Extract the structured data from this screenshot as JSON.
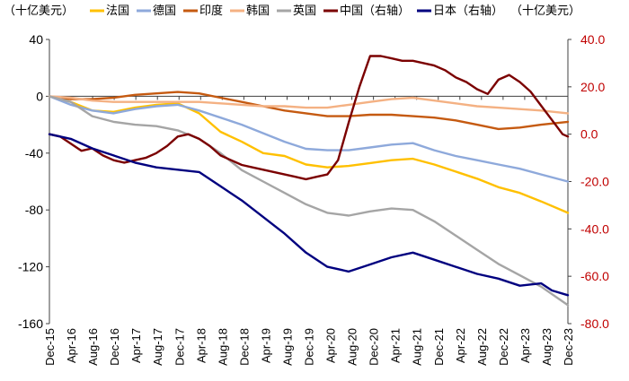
{
  "chart_data": {
    "type": "line",
    "title": "",
    "left_axis_unit": "（十亿美元）",
    "right_axis_unit": "（十亿美元）",
    "left_ylim": [
      -160,
      40
    ],
    "left_yticks": [
      40,
      0,
      -40,
      -80,
      -120,
      -160
    ],
    "right_ylim": [
      -80,
      40
    ],
    "right_yticks": [
      "40.0",
      "20.0",
      "0.0",
      "-20.0",
      "-40.0",
      "-60.0",
      "-80.0"
    ],
    "right_ytick_values": [
      40,
      20,
      0,
      -20,
      -40,
      -60,
      -80
    ],
    "x_range": [
      0,
      97
    ],
    "x_tick_labels": [
      "Dec-15",
      "Apr-16",
      "Aug-16",
      "Dec-16",
      "Apr-17",
      "Aug-17",
      "Dec-17",
      "Apr-18",
      "Aug-18",
      "Dec-18",
      "Apr-19",
      "Aug-19",
      "Dec-19",
      "Apr-20",
      "Aug-20",
      "Dec-20",
      "Apr-21",
      "Aug-21",
      "Dec-21",
      "Apr-22",
      "Aug-22",
      "Dec-22",
      "Apr-23",
      "Aug-23",
      "Dec-23"
    ],
    "colors": {
      "france": "#FFC000",
      "germany": "#8EA9DB",
      "india": "#C55A11",
      "korea": "#F4B183",
      "uk": "#A5A5A5",
      "china": "#7B0000",
      "japan": "#00007F",
      "right_axis": "#C00000"
    },
    "series": [
      {
        "key": "france",
        "name": "法国",
        "axis": "left",
        "points": [
          [
            0,
            0
          ],
          [
            4,
            -4
          ],
          [
            8,
            -10
          ],
          [
            12,
            -11
          ],
          [
            16,
            -8
          ],
          [
            20,
            -6
          ],
          [
            24,
            -5
          ],
          [
            28,
            -12
          ],
          [
            32,
            -25
          ],
          [
            36,
            -32
          ],
          [
            40,
            -40
          ],
          [
            44,
            -42
          ],
          [
            48,
            -48
          ],
          [
            52,
            -50
          ],
          [
            56,
            -49
          ],
          [
            60,
            -47
          ],
          [
            64,
            -45
          ],
          [
            68,
            -44
          ],
          [
            72,
            -48
          ],
          [
            76,
            -53
          ],
          [
            80,
            -58
          ],
          [
            84,
            -64
          ],
          [
            88,
            -68
          ],
          [
            92,
            -74
          ],
          [
            97,
            -82
          ]
        ]
      },
      {
        "key": "germany",
        "name": "德国",
        "axis": "left",
        "points": [
          [
            0,
            0
          ],
          [
            4,
            -6
          ],
          [
            8,
            -10
          ],
          [
            12,
            -12
          ],
          [
            16,
            -9
          ],
          [
            20,
            -7
          ],
          [
            24,
            -6
          ],
          [
            28,
            -10
          ],
          [
            32,
            -15
          ],
          [
            36,
            -20
          ],
          [
            40,
            -26
          ],
          [
            44,
            -32
          ],
          [
            48,
            -37
          ],
          [
            52,
            -38
          ],
          [
            56,
            -38
          ],
          [
            60,
            -36
          ],
          [
            64,
            -34
          ],
          [
            68,
            -33
          ],
          [
            72,
            -38
          ],
          [
            76,
            -42
          ],
          [
            80,
            -45
          ],
          [
            84,
            -48
          ],
          [
            88,
            -51
          ],
          [
            92,
            -55
          ],
          [
            97,
            -60
          ]
        ]
      },
      {
        "key": "india",
        "name": "印度",
        "axis": "left",
        "points": [
          [
            0,
            0
          ],
          [
            4,
            -2
          ],
          [
            8,
            -2
          ],
          [
            12,
            -1
          ],
          [
            16,
            1
          ],
          [
            20,
            2
          ],
          [
            24,
            3
          ],
          [
            28,
            2
          ],
          [
            32,
            -1
          ],
          [
            36,
            -4
          ],
          [
            40,
            -7
          ],
          [
            44,
            -10
          ],
          [
            48,
            -12
          ],
          [
            52,
            -14
          ],
          [
            56,
            -14
          ],
          [
            60,
            -13
          ],
          [
            64,
            -13
          ],
          [
            68,
            -14
          ],
          [
            72,
            -15
          ],
          [
            76,
            -17
          ],
          [
            80,
            -20
          ],
          [
            84,
            -23
          ],
          [
            88,
            -22
          ],
          [
            92,
            -20
          ],
          [
            97,
            -18
          ]
        ]
      },
      {
        "key": "korea",
        "name": "韩国",
        "axis": "left",
        "points": [
          [
            0,
            0
          ],
          [
            4,
            -1
          ],
          [
            8,
            -3
          ],
          [
            12,
            -4
          ],
          [
            16,
            -4
          ],
          [
            20,
            -4
          ],
          [
            24,
            -4
          ],
          [
            28,
            -4
          ],
          [
            32,
            -5
          ],
          [
            36,
            -6
          ],
          [
            40,
            -7
          ],
          [
            44,
            -7
          ],
          [
            48,
            -8
          ],
          [
            52,
            -8
          ],
          [
            56,
            -6
          ],
          [
            60,
            -4
          ],
          [
            64,
            -2
          ],
          [
            68,
            -1
          ],
          [
            72,
            -3
          ],
          [
            76,
            -5
          ],
          [
            80,
            -7
          ],
          [
            84,
            -8
          ],
          [
            88,
            -9
          ],
          [
            92,
            -10
          ],
          [
            97,
            -12
          ]
        ]
      },
      {
        "key": "uk",
        "name": "英国",
        "axis": "left",
        "points": [
          [
            0,
            0
          ],
          [
            4,
            -4
          ],
          [
            8,
            -14
          ],
          [
            12,
            -18
          ],
          [
            16,
            -20
          ],
          [
            20,
            -21
          ],
          [
            24,
            -24
          ],
          [
            28,
            -30
          ],
          [
            32,
            -40
          ],
          [
            36,
            -52
          ],
          [
            40,
            -60
          ],
          [
            44,
            -68
          ],
          [
            48,
            -76
          ],
          [
            52,
            -82
          ],
          [
            56,
            -84
          ],
          [
            60,
            -81
          ],
          [
            64,
            -79
          ],
          [
            68,
            -80
          ],
          [
            72,
            -88
          ],
          [
            76,
            -98
          ],
          [
            80,
            -108
          ],
          [
            84,
            -118
          ],
          [
            88,
            -126
          ],
          [
            92,
            -134
          ],
          [
            97,
            -147
          ]
        ]
      },
      {
        "key": "china",
        "name": "中国（右轴）",
        "axis": "right",
        "points": [
          [
            0,
            0
          ],
          [
            2,
            -1
          ],
          [
            4,
            -4
          ],
          [
            6,
            -7
          ],
          [
            8,
            -6
          ],
          [
            10,
            -9
          ],
          [
            12,
            -11
          ],
          [
            14,
            -12
          ],
          [
            16,
            -11
          ],
          [
            18,
            -10
          ],
          [
            20,
            -8
          ],
          [
            22,
            -5
          ],
          [
            24,
            -1
          ],
          [
            26,
            0
          ],
          [
            28,
            -2
          ],
          [
            30,
            -5
          ],
          [
            32,
            -9
          ],
          [
            34,
            -11
          ],
          [
            36,
            -13
          ],
          [
            38,
            -14
          ],
          [
            40,
            -15
          ],
          [
            42,
            -16
          ],
          [
            44,
            -17
          ],
          [
            46,
            -18
          ],
          [
            48,
            -19
          ],
          [
            50,
            -18
          ],
          [
            52,
            -17
          ],
          [
            54,
            -11
          ],
          [
            56,
            5
          ],
          [
            58,
            20
          ],
          [
            60,
            33
          ],
          [
            62,
            33
          ],
          [
            64,
            32
          ],
          [
            66,
            31
          ],
          [
            68,
            31
          ],
          [
            70,
            30
          ],
          [
            72,
            29
          ],
          [
            74,
            27
          ],
          [
            76,
            24
          ],
          [
            78,
            22
          ],
          [
            80,
            19
          ],
          [
            82,
            17
          ],
          [
            84,
            23
          ],
          [
            86,
            25
          ],
          [
            88,
            22
          ],
          [
            90,
            18
          ],
          [
            92,
            12
          ],
          [
            94,
            6
          ],
          [
            96,
            0
          ],
          [
            97,
            -1
          ]
        ]
      },
      {
        "key": "japan",
        "name": "日本（右轴）",
        "axis": "right",
        "points": [
          [
            0,
            0
          ],
          [
            4,
            -2
          ],
          [
            8,
            -6
          ],
          [
            12,
            -9
          ],
          [
            16,
            -12
          ],
          [
            20,
            -14
          ],
          [
            24,
            -15
          ],
          [
            28,
            -16
          ],
          [
            32,
            -22
          ],
          [
            36,
            -28
          ],
          [
            40,
            -35
          ],
          [
            44,
            -42
          ],
          [
            48,
            -50
          ],
          [
            52,
            -56
          ],
          [
            56,
            -58
          ],
          [
            60,
            -55
          ],
          [
            64,
            -52
          ],
          [
            68,
            -50
          ],
          [
            72,
            -53
          ],
          [
            76,
            -56
          ],
          [
            80,
            -59
          ],
          [
            84,
            -61
          ],
          [
            88,
            -64
          ],
          [
            92,
            -63
          ],
          [
            94,
            -66
          ],
          [
            97,
            -68
          ]
        ]
      }
    ]
  }
}
